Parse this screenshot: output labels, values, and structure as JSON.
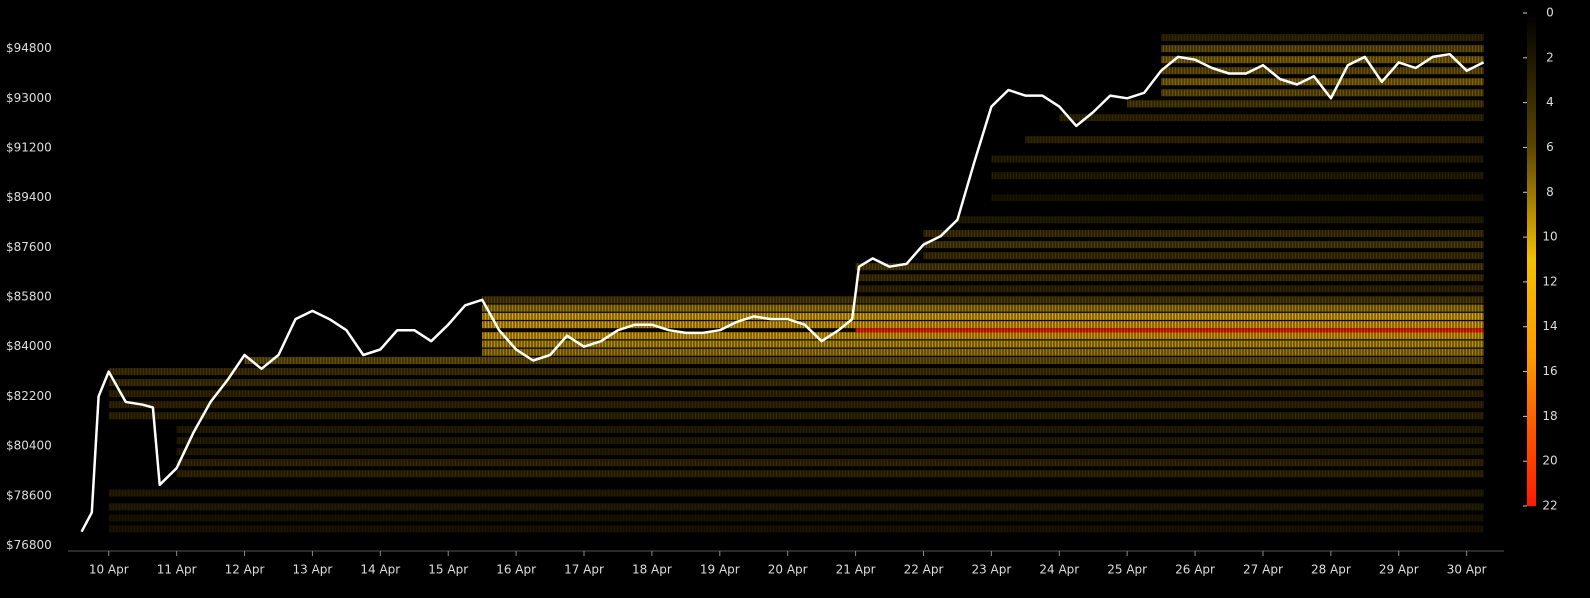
{
  "chart_data": {
    "type": "heatmap-line",
    "xlim": [
      9.4,
      30.55
    ],
    "ylim": [
      76600,
      96200
    ],
    "xticks": [
      {
        "value": 10,
        "label": "10 Apr"
      },
      {
        "value": 11,
        "label": "11 Apr"
      },
      {
        "value": 12,
        "label": "12 Apr"
      },
      {
        "value": 13,
        "label": "13 Apr"
      },
      {
        "value": 14,
        "label": "14 Apr"
      },
      {
        "value": 15,
        "label": "15 Apr"
      },
      {
        "value": 16,
        "label": "16 Apr"
      },
      {
        "value": 17,
        "label": "17 Apr"
      },
      {
        "value": 18,
        "label": "18 Apr"
      },
      {
        "value": 19,
        "label": "19 Apr"
      },
      {
        "value": 20,
        "label": "20 Apr"
      },
      {
        "value": 21,
        "label": "21 Apr"
      },
      {
        "value": 22,
        "label": "22 Apr"
      },
      {
        "value": 23,
        "label": "23 Apr"
      },
      {
        "value": 24,
        "label": "24 Apr"
      },
      {
        "value": 25,
        "label": "25 Apr"
      },
      {
        "value": 26,
        "label": "26 Apr"
      },
      {
        "value": 27,
        "label": "27 Apr"
      },
      {
        "value": 28,
        "label": "28 Apr"
      },
      {
        "value": 29,
        "label": "29 Apr"
      },
      {
        "value": 30,
        "label": "30 Apr"
      }
    ],
    "yticks": [
      {
        "value": 76800,
        "label": "$76800"
      },
      {
        "value": 78600,
        "label": "$78600"
      },
      {
        "value": 80400,
        "label": "$80400"
      },
      {
        "value": 82200,
        "label": "$82200"
      },
      {
        "value": 84000,
        "label": "$84000"
      },
      {
        "value": 85800,
        "label": "$85800"
      },
      {
        "value": 87600,
        "label": "$87600"
      },
      {
        "value": 89400,
        "label": "$89400"
      },
      {
        "value": 91200,
        "label": "$91200"
      },
      {
        "value": 93000,
        "label": "$93000"
      },
      {
        "value": 94800,
        "label": "$94800"
      }
    ],
    "x": [
      9.6,
      9.75,
      9.85,
      10,
      10.25,
      10.5,
      10.65,
      10.75,
      11,
      11.25,
      11.5,
      11.75,
      12,
      12.25,
      12.5,
      12.75,
      13,
      13.25,
      13.5,
      13.75,
      14,
      14.25,
      14.5,
      14.75,
      15,
      15.25,
      15.5,
      15.75,
      16,
      16.25,
      16.5,
      16.75,
      17,
      17.25,
      17.5,
      17.75,
      18,
      18.25,
      18.5,
      18.75,
      19,
      19.25,
      19.5,
      19.75,
      20,
      20.25,
      20.5,
      20.75,
      20.95,
      21.05,
      21.25,
      21.5,
      21.75,
      22,
      22.25,
      22.5,
      22.75,
      23,
      23.25,
      23.5,
      23.75,
      24,
      24.25,
      24.5,
      24.75,
      25,
      25.25,
      25.5,
      25.75,
      26,
      26.25,
      26.5,
      26.75,
      27,
      27.25,
      27.5,
      27.75,
      28,
      28.25,
      28.5,
      28.75,
      29,
      29.25,
      29.5,
      29.75,
      30,
      30.25
    ],
    "series": [
      {
        "color": "#ffffff",
        "values": [
          77300,
          78000,
          82200,
          83100,
          82000,
          81900,
          81800,
          79000,
          79600,
          80900,
          82000,
          82800,
          83700,
          83200,
          83700,
          85000,
          85300,
          85000,
          84600,
          83700,
          83900,
          84600,
          84600,
          84200,
          84800,
          85500,
          85700,
          84600,
          83900,
          83500,
          83700,
          84400,
          84000,
          84200,
          84600,
          84800,
          84800,
          84600,
          84500,
          84500,
          84600,
          84900,
          85100,
          85000,
          85000,
          84800,
          84200,
          84600,
          85000,
          86900,
          87200,
          86900,
          87000,
          87700,
          88000,
          88600,
          90700,
          92700,
          93300,
          93100,
          93100,
          92700,
          92000,
          92500,
          93100,
          93000,
          93200,
          94000,
          94500,
          94400,
          94100,
          93900,
          93900,
          94200,
          93700,
          93500,
          93800,
          93000,
          94200,
          94500,
          93600,
          94300,
          94100,
          94500,
          94600,
          94000,
          94300
        ]
      }
    ],
    "heat": {
      "prices": [
        77400,
        77800,
        78200,
        78700,
        79400,
        79800,
        80200,
        80600,
        81000,
        81500,
        81900,
        82300,
        82700,
        83100,
        83500,
        83800,
        84100,
        84400,
        84800,
        85100,
        85400,
        85700,
        86100,
        86500,
        86900,
        87300,
        87700,
        88100,
        88600,
        89400,
        90200,
        90800,
        91500,
        92300,
        92800,
        93200,
        93600,
        94000,
        94400,
        94800,
        95200,
        84600
      ],
      "starts": [
        10,
        10,
        10,
        10,
        11,
        11,
        11,
        11,
        11,
        10,
        10,
        10,
        10,
        10,
        12,
        15.5,
        15.5,
        15.5,
        15.5,
        15.5,
        15.5,
        15.5,
        21,
        21,
        21,
        22,
        22,
        22,
        22.5,
        23,
        23,
        23,
        23.5,
        24,
        25,
        25.5,
        25.5,
        25.5,
        25.5,
        25.5,
        25.5,
        21
      ],
      "intensities": [
        2,
        2,
        3,
        3,
        4,
        4,
        3,
        3,
        3,
        4,
        4,
        4,
        5,
        5,
        7,
        9,
        10,
        12,
        12,
        11,
        9,
        6,
        4,
        5,
        6,
        5,
        6,
        5,
        3,
        2,
        3,
        3,
        4,
        4,
        6,
        7,
        8,
        7,
        8,
        7,
        4,
        22
      ]
    },
    "colorbar": {
      "lim": [
        0,
        22
      ],
      "ticks": [
        0,
        2,
        4,
        6,
        8,
        10,
        12,
        14,
        16,
        18,
        20,
        22
      ]
    }
  }
}
